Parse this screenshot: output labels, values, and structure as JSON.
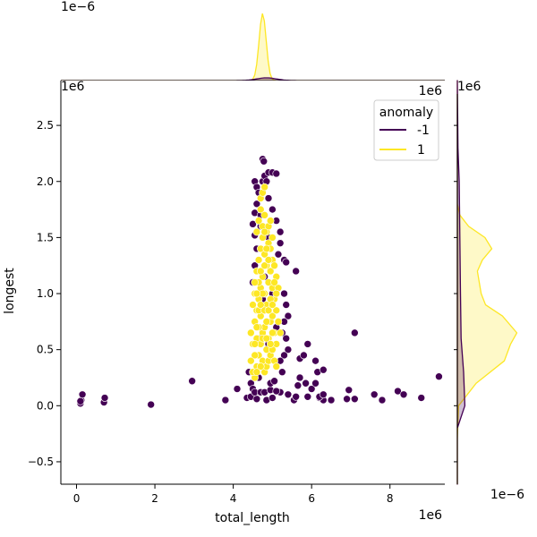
{
  "chart_data": {
    "type": "scatter",
    "xlabel": "total_length",
    "ylabel": "longest",
    "x_scale_label": "1e6",
    "y_scale_label": "1e6",
    "top_marginal_scale_label": "1e−6",
    "right_marginal_scale_label": "1e−6",
    "x_top_offset_label": "1e6",
    "right_marginal_top_label": "1e6",
    "xlim": [
      -0.4,
      9.4
    ],
    "ylim": [
      -0.7,
      2.9
    ],
    "xticks": [
      0,
      2,
      4,
      6,
      8
    ],
    "xtick_labels": [
      "0",
      "2",
      "4",
      "6",
      "8"
    ],
    "yticks": [
      -0.5,
      0.0,
      0.5,
      1.0,
      1.5,
      2.0,
      2.5
    ],
    "ytick_labels": [
      "−0.5",
      "0.0",
      "0.5",
      "1.0",
      "1.5",
      "2.0",
      "2.5"
    ],
    "grid": false,
    "legend": {
      "title": "anomaly",
      "position": "top-right",
      "entries": [
        {
          "label": "-1",
          "color": "#440154"
        },
        {
          "label": "1",
          "color": "#fde725"
        }
      ]
    },
    "series": [
      {
        "name": "-1",
        "color": "#440154",
        "points": [
          [
            0.1,
            0.02
          ],
          [
            0.12,
            0.05
          ],
          [
            0.15,
            0.1
          ],
          [
            0.1,
            0.04
          ],
          [
            0.7,
            0.03
          ],
          [
            0.72,
            0.07
          ],
          [
            1.9,
            0.01
          ],
          [
            2.95,
            0.22
          ],
          [
            3.8,
            0.05
          ],
          [
            4.1,
            0.15
          ],
          [
            4.35,
            0.07
          ],
          [
            4.45,
            0.08
          ],
          [
            4.6,
            0.06
          ],
          [
            4.85,
            0.05
          ],
          [
            5.0,
            0.07
          ],
          [
            5.2,
            0.12
          ],
          [
            5.4,
            0.1
          ],
          [
            5.55,
            0.05
          ],
          [
            5.6,
            0.08
          ],
          [
            5.7,
            0.25
          ],
          [
            5.9,
            0.08
          ],
          [
            6.0,
            0.15
          ],
          [
            6.2,
            0.07
          ],
          [
            6.3,
            0.05
          ],
          [
            6.5,
            0.05
          ],
          [
            6.9,
            0.06
          ],
          [
            6.95,
            0.14
          ],
          [
            7.1,
            0.65
          ],
          [
            7.1,
            0.06
          ],
          [
            7.6,
            0.1
          ],
          [
            7.8,
            0.05
          ],
          [
            8.2,
            0.13
          ],
          [
            8.35,
            0.1
          ],
          [
            8.8,
            0.07
          ],
          [
            9.25,
            0.26
          ],
          [
            5.7,
            0.42
          ],
          [
            5.8,
            0.45
          ],
          [
            5.9,
            0.55
          ],
          [
            6.1,
            0.4
          ],
          [
            6.15,
            0.3
          ],
          [
            6.3,
            0.32
          ],
          [
            6.1,
            0.2
          ],
          [
            5.65,
            0.18
          ],
          [
            5.85,
            0.2
          ],
          [
            6.2,
            0.08
          ],
          [
            6.3,
            0.1
          ],
          [
            4.55,
            2.0
          ],
          [
            4.6,
            1.95
          ],
          [
            4.65,
            1.9
          ],
          [
            4.75,
            2.0
          ],
          [
            4.8,
            2.05
          ],
          [
            4.85,
            2.0
          ],
          [
            4.9,
            2.08
          ],
          [
            5.0,
            2.08
          ],
          [
            5.1,
            2.07
          ],
          [
            4.75,
            2.2
          ],
          [
            4.78,
            2.18
          ],
          [
            4.6,
            1.8
          ],
          [
            4.55,
            1.72
          ],
          [
            4.5,
            1.62
          ],
          [
            4.55,
            1.52
          ],
          [
            4.6,
            1.4
          ],
          [
            4.7,
            1.6
          ],
          [
            4.9,
            1.85
          ],
          [
            5.0,
            1.75
          ],
          [
            5.1,
            1.65
          ],
          [
            5.2,
            1.55
          ],
          [
            5.2,
            1.45
          ],
          [
            5.3,
            1.3
          ],
          [
            5.35,
            1.28
          ],
          [
            5.15,
            1.35
          ],
          [
            5.6,
            1.2
          ],
          [
            5.3,
            1.0
          ],
          [
            5.35,
            0.9
          ],
          [
            5.4,
            0.8
          ],
          [
            5.3,
            0.75
          ],
          [
            5.25,
            0.65
          ],
          [
            5.35,
            0.6
          ],
          [
            5.4,
            0.5
          ],
          [
            5.3,
            0.45
          ],
          [
            5.2,
            0.4
          ],
          [
            5.25,
            0.3
          ],
          [
            4.4,
            0.3
          ],
          [
            4.45,
            0.2
          ],
          [
            4.5,
            0.15
          ],
          [
            4.55,
            0.12
          ],
          [
            4.7,
            0.12
          ],
          [
            4.8,
            0.12
          ],
          [
            4.95,
            0.14
          ],
          [
            5.1,
            0.13
          ],
          [
            4.65,
            0.25
          ],
          [
            4.6,
            0.35
          ],
          [
            4.95,
            0.2
          ],
          [
            5.05,
            0.22
          ],
          [
            4.55,
            1.25
          ],
          [
            4.5,
            1.1
          ],
          [
            4.8,
            1.15
          ],
          [
            5.0,
            1.0
          ],
          [
            4.85,
            0.85
          ],
          [
            4.7,
            0.6
          ],
          [
            4.9,
            0.55
          ],
          [
            5.1,
            0.7
          ],
          [
            4.75,
            0.95
          ],
          [
            4.9,
            1.5
          ],
          [
            4.7,
            1.7
          ],
          [
            4.95,
            1.3
          ]
        ]
      },
      {
        "name": "1",
        "color": "#fde725",
        "points": [
          [
            4.55,
            0.25
          ],
          [
            4.6,
            0.35
          ],
          [
            4.65,
            0.45
          ],
          [
            4.7,
            0.55
          ],
          [
            4.75,
            0.65
          ],
          [
            4.8,
            0.7
          ],
          [
            4.85,
            0.5
          ],
          [
            4.9,
            0.6
          ],
          [
            4.95,
            0.75
          ],
          [
            5.0,
            0.8
          ],
          [
            5.05,
            0.65
          ],
          [
            5.1,
            0.55
          ],
          [
            4.5,
            0.55
          ],
          [
            4.45,
            0.65
          ],
          [
            4.55,
            0.75
          ],
          [
            4.6,
            0.85
          ],
          [
            4.65,
            0.95
          ],
          [
            4.7,
            1.05
          ],
          [
            4.75,
            1.15
          ],
          [
            4.8,
            1.0
          ],
          [
            4.85,
            0.9
          ],
          [
            4.9,
            1.1
          ],
          [
            4.95,
            1.2
          ],
          [
            5.0,
            1.05
          ],
          [
            5.05,
            0.95
          ],
          [
            5.1,
            0.85
          ],
          [
            5.15,
            0.75
          ],
          [
            5.2,
            0.65
          ],
          [
            4.5,
            0.9
          ],
          [
            4.55,
            1.0
          ],
          [
            4.6,
            1.2
          ],
          [
            4.65,
            1.3
          ],
          [
            4.7,
            1.4
          ],
          [
            4.75,
            1.5
          ],
          [
            4.8,
            1.35
          ],
          [
            4.85,
            1.25
          ],
          [
            4.9,
            1.45
          ],
          [
            4.95,
            1.4
          ],
          [
            5.0,
            1.3
          ],
          [
            5.05,
            1.25
          ],
          [
            5.1,
            1.15
          ],
          [
            5.15,
            1.05
          ],
          [
            4.6,
            1.55
          ],
          [
            4.65,
            1.65
          ],
          [
            4.7,
            1.75
          ],
          [
            4.75,
            1.6
          ],
          [
            4.8,
            1.7
          ],
          [
            4.85,
            1.55
          ],
          [
            4.9,
            1.6
          ],
          [
            4.95,
            1.65
          ],
          [
            5.0,
            1.5
          ],
          [
            4.7,
            1.85
          ],
          [
            4.75,
            1.9
          ],
          [
            4.8,
            1.95
          ],
          [
            4.55,
            0.45
          ],
          [
            4.6,
            0.6
          ],
          [
            4.65,
            0.7
          ],
          [
            4.7,
            0.8
          ],
          [
            4.75,
            0.4
          ],
          [
            4.8,
            0.3
          ],
          [
            4.85,
            0.35
          ],
          [
            4.9,
            0.4
          ],
          [
            4.95,
            0.45
          ],
          [
            5.0,
            0.5
          ],
          [
            5.05,
            0.4
          ],
          [
            5.1,
            0.35
          ],
          [
            4.45,
            0.4
          ],
          [
            4.5,
            0.3
          ],
          [
            4.55,
            0.55
          ],
          [
            4.6,
            0.7
          ],
          [
            4.65,
            0.85
          ],
          [
            4.7,
            0.9
          ],
          [
            4.75,
            1.0
          ],
          [
            4.8,
            0.85
          ],
          [
            4.85,
            0.75
          ],
          [
            4.9,
            0.85
          ],
          [
            4.95,
            0.95
          ],
          [
            5.0,
            0.9
          ],
          [
            5.05,
            1.1
          ],
          [
            5.1,
            1.0
          ],
          [
            4.65,
            1.1
          ],
          [
            4.7,
            1.2
          ],
          [
            4.8,
            1.25
          ],
          [
            4.9,
            1.3
          ],
          [
            4.6,
            1.0
          ],
          [
            4.55,
            1.1
          ],
          [
            4.8,
            1.55
          ],
          [
            4.85,
            1.4
          ],
          [
            4.75,
            0.6
          ],
          [
            4.85,
            0.6
          ],
          [
            4.95,
            0.55
          ],
          [
            5.0,
            0.65
          ],
          [
            4.7,
            0.35
          ],
          [
            4.6,
            0.3
          ]
        ]
      }
    ],
    "top_marginal": {
      "type": "kde",
      "peak_x": 4.75,
      "series": [
        {
          "name": "1",
          "color": "#fde725",
          "center": 4.75,
          "bandwidth": 0.09,
          "peak_height": 1.0
        },
        {
          "name": "-1",
          "color": "#440154",
          "center": 4.85,
          "bandwidth": 0.25,
          "peak_height": 0.04
        }
      ]
    },
    "right_marginal": {
      "type": "kde",
      "series": [
        {
          "name": "1",
          "color": "#fde725",
          "profile": [
            [
              -0.7,
              0.0
            ],
            [
              -0.3,
              0.0
            ],
            [
              0.0,
              0.02
            ],
            [
              0.2,
              0.3
            ],
            [
              0.4,
              0.75
            ],
            [
              0.55,
              0.85
            ],
            [
              0.65,
              0.95
            ],
            [
              0.8,
              0.72
            ],
            [
              0.9,
              0.45
            ],
            [
              1.0,
              0.38
            ],
            [
              1.1,
              0.35
            ],
            [
              1.2,
              0.32
            ],
            [
              1.3,
              0.4
            ],
            [
              1.4,
              0.55
            ],
            [
              1.5,
              0.44
            ],
            [
              1.6,
              0.18
            ],
            [
              1.7,
              0.04
            ],
            [
              1.8,
              0.0
            ],
            [
              2.9,
              0.0
            ]
          ]
        },
        {
          "name": "-1",
          "color": "#440154",
          "profile": [
            [
              -0.7,
              0.0
            ],
            [
              -0.2,
              0.0
            ],
            [
              0.0,
              0.12
            ],
            [
              0.3,
              0.1
            ],
            [
              0.6,
              0.06
            ],
            [
              1.0,
              0.05
            ],
            [
              1.5,
              0.04
            ],
            [
              2.0,
              0.03
            ],
            [
              2.3,
              0.01
            ],
            [
              2.9,
              0.0
            ]
          ]
        }
      ]
    }
  }
}
